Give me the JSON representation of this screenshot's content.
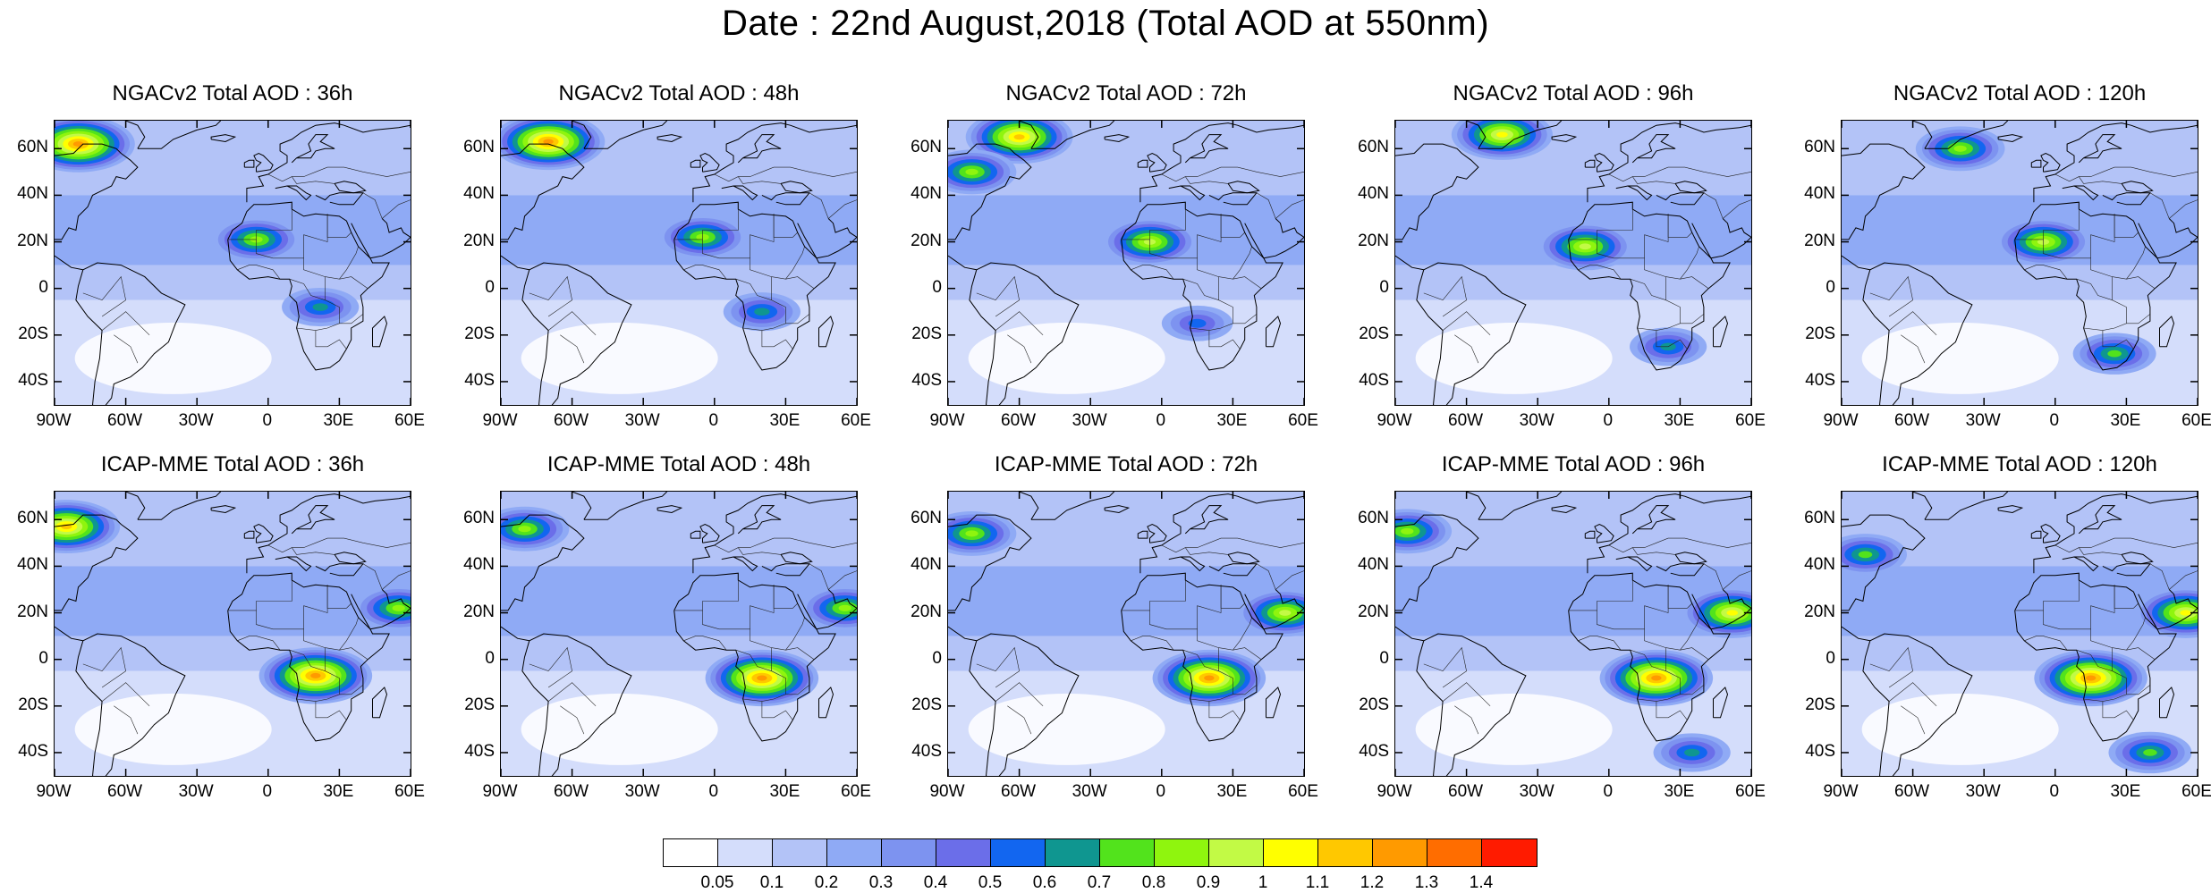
{
  "title": "Date : 22nd August,2018 (Total AOD at 550nm)",
  "lat_labels": [
    "60N",
    "40N",
    "20N",
    "0",
    "20S",
    "40S"
  ],
  "lon_labels": [
    "90W",
    "60W",
    "30W",
    "0",
    "30E",
    "60E"
  ],
  "panels": [
    {
      "title": "NGACv2 Total AOD : 36h",
      "model": "NGACv2",
      "lead": "36h",
      "plumes": [
        {
          "lon": -80,
          "lat": 62,
          "level": 13
        },
        {
          "lon": -5,
          "lat": 21,
          "level": 9
        },
        {
          "lon": 22,
          "lat": -8,
          "level": 7
        }
      ]
    },
    {
      "title": "NGACv2 Total AOD : 48h",
      "model": "NGACv2",
      "lead": "48h",
      "plumes": [
        {
          "lon": -70,
          "lat": 63,
          "level": 13
        },
        {
          "lon": -5,
          "lat": 22,
          "level": 9
        },
        {
          "lon": 20,
          "lat": -10,
          "level": 7
        }
      ]
    },
    {
      "title": "NGACv2 Total AOD : 72h",
      "model": "NGACv2",
      "lead": "72h",
      "plumes": [
        {
          "lon": -60,
          "lat": 65,
          "level": 12
        },
        {
          "lon": -80,
          "lat": 50,
          "level": 9
        },
        {
          "lon": -5,
          "lat": 20,
          "level": 10
        },
        {
          "lon": 15,
          "lat": -15,
          "level": 6
        }
      ]
    },
    {
      "title": "NGACv2 Total AOD : 96h",
      "model": "NGACv2",
      "lead": "96h",
      "plumes": [
        {
          "lon": -45,
          "lat": 66,
          "level": 11
        },
        {
          "lon": -10,
          "lat": 18,
          "level": 10
        },
        {
          "lon": 25,
          "lat": -25,
          "level": 7
        }
      ]
    },
    {
      "title": "NGACv2 Total AOD : 120h",
      "model": "NGACv2",
      "lead": "120h",
      "plumes": [
        {
          "lon": -40,
          "lat": 60,
          "level": 9
        },
        {
          "lon": -5,
          "lat": 20,
          "level": 10
        },
        {
          "lon": 25,
          "lat": -28,
          "level": 8
        }
      ]
    },
    {
      "title": "ICAP-MME Total AOD : 36h",
      "model": "ICAP-MME",
      "lead": "36h",
      "plumes": [
        {
          "lon": -85,
          "lat": 57,
          "level": 12
        },
        {
          "lon": 20,
          "lat": -7,
          "level": 13
        },
        {
          "lon": 55,
          "lat": 22,
          "level": 9
        }
      ]
    },
    {
      "title": "ICAP-MME Total AOD : 48h",
      "model": "ICAP-MME",
      "lead": "48h",
      "plumes": [
        {
          "lon": -80,
          "lat": 56,
          "level": 9
        },
        {
          "lon": 20,
          "lat": -8,
          "level": 13
        },
        {
          "lon": 55,
          "lat": 22,
          "level": 9
        }
      ]
    },
    {
      "title": "ICAP-MME Total AOD : 72h",
      "model": "ICAP-MME",
      "lead": "72h",
      "plumes": [
        {
          "lon": -80,
          "lat": 54,
          "level": 9
        },
        {
          "lon": 20,
          "lat": -8,
          "level": 13
        },
        {
          "lon": 52,
          "lat": 20,
          "level": 10
        }
      ]
    },
    {
      "title": "ICAP-MME Total AOD : 96h",
      "model": "ICAP-MME",
      "lead": "96h",
      "plumes": [
        {
          "lon": -85,
          "lat": 55,
          "level": 9
        },
        {
          "lon": 20,
          "lat": -8,
          "level": 13
        },
        {
          "lon": 52,
          "lat": 20,
          "level": 11
        },
        {
          "lon": 35,
          "lat": -40,
          "level": 7
        }
      ]
    },
    {
      "title": "ICAP-MME Total AOD : 120h",
      "model": "ICAP-MME",
      "lead": "120h",
      "plumes": [
        {
          "lon": -80,
          "lat": 45,
          "level": 8
        },
        {
          "lon": 15,
          "lat": -8,
          "level": 13
        },
        {
          "lon": 55,
          "lat": 20,
          "level": 11
        },
        {
          "lon": 40,
          "lat": -40,
          "level": 8
        }
      ]
    }
  ],
  "colorbar": {
    "colors": [
      "#ffffff",
      "#d4ddfb",
      "#b3c3f7",
      "#8faaf5",
      "#7d93f0",
      "#6b6ee9",
      "#1266f0",
      "#0f9690",
      "#52e31c",
      "#8ff50e",
      "#c2fa45",
      "#ffff00",
      "#ffc800",
      "#ff9a00",
      "#ff6d00",
      "#ff1b00"
    ],
    "ticks": [
      "0.05",
      "0.1",
      "0.2",
      "0.3",
      "0.4",
      "0.5",
      "0.6",
      "0.7",
      "0.8",
      "0.9",
      "1",
      "1.1",
      "1.2",
      "1.3",
      "1.4"
    ]
  }
}
